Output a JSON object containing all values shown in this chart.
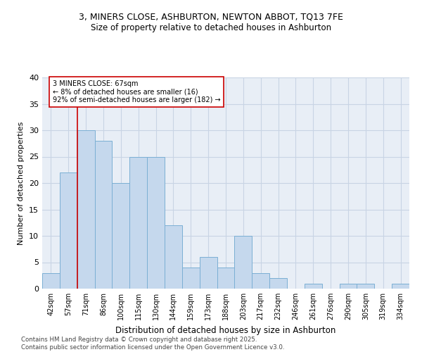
{
  "title_line1": "3, MINERS CLOSE, ASHBURTON, NEWTON ABBOT, TQ13 7FE",
  "title_line2": "Size of property relative to detached houses in Ashburton",
  "xlabel": "Distribution of detached houses by size in Ashburton",
  "ylabel": "Number of detached properties",
  "categories": [
    "42sqm",
    "57sqm",
    "71sqm",
    "86sqm",
    "100sqm",
    "115sqm",
    "130sqm",
    "144sqm",
    "159sqm",
    "173sqm",
    "188sqm",
    "203sqm",
    "217sqm",
    "232sqm",
    "246sqm",
    "261sqm",
    "276sqm",
    "290sqm",
    "305sqm",
    "319sqm",
    "334sqm"
  ],
  "values": [
    3,
    22,
    30,
    28,
    20,
    25,
    25,
    12,
    4,
    6,
    4,
    10,
    3,
    2,
    0,
    1,
    0,
    1,
    1,
    0,
    1
  ],
  "bar_color": "#c5d8ed",
  "bar_edge_color": "#7bafd4",
  "grid_color": "#c8d4e4",
  "bg_color": "#e8eef6",
  "vline_color": "#cc0000",
  "vline_index": 1.5,
  "annotation_text": "3 MINERS CLOSE: 67sqm\n← 8% of detached houses are smaller (16)\n92% of semi-detached houses are larger (182) →",
  "annotation_box_color": "#cc0000",
  "footer_text": "Contains HM Land Registry data © Crown copyright and database right 2025.\nContains public sector information licensed under the Open Government Licence v3.0.",
  "ylim": [
    0,
    40
  ],
  "yticks": [
    0,
    5,
    10,
    15,
    20,
    25,
    30,
    35,
    40
  ]
}
